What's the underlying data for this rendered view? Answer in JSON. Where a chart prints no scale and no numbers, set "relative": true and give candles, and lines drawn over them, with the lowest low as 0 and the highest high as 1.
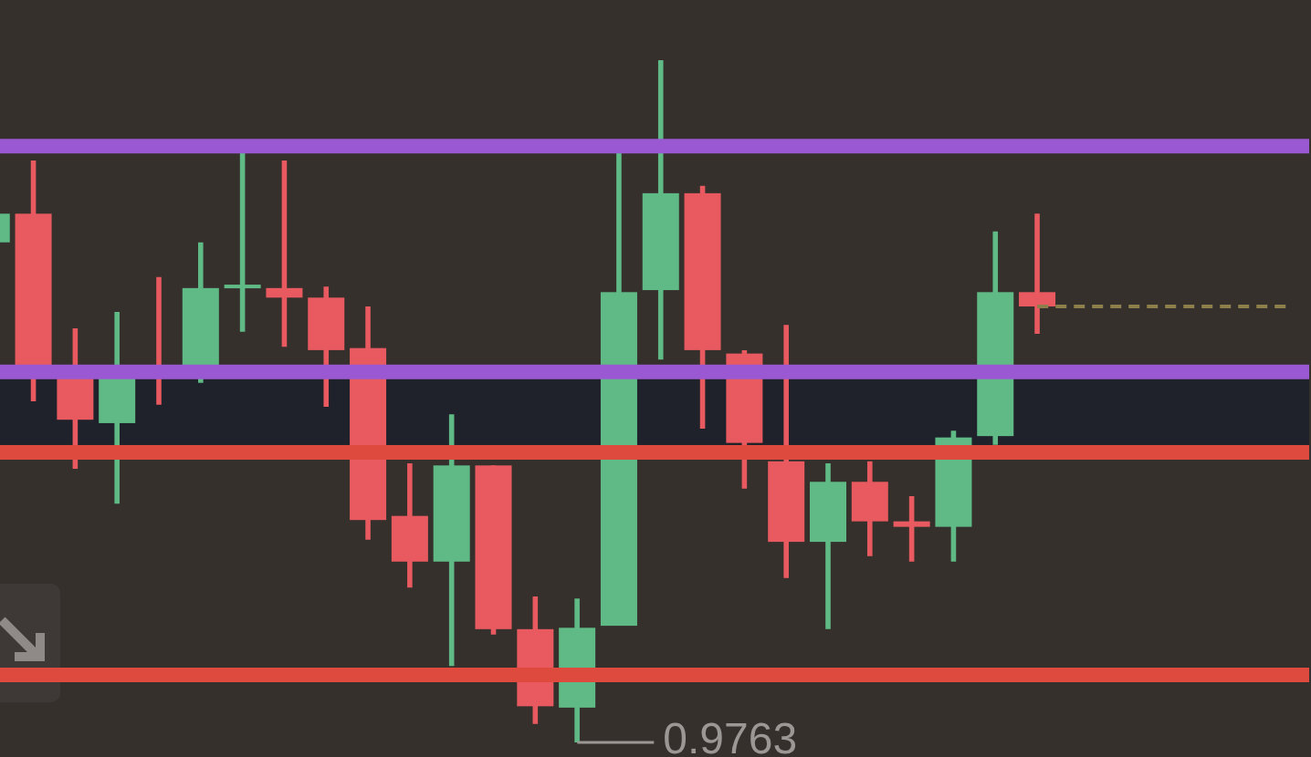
{
  "chart_data": {
    "type": "candlestick",
    "relative": true,
    "tick_labels": false,
    "categories": [
      null,
      null,
      null,
      null,
      null,
      null,
      null,
      null,
      null,
      null,
      null,
      null,
      null,
      null,
      null,
      null,
      null,
      null,
      null,
      null,
      null,
      null,
      null,
      null,
      null,
      null,
      null,
      null,
      null,
      null,
      null,
      null
    ],
    "ohlc": [
      [
        0.733,
        0.775,
        0.733,
        0.775
      ],
      [
        0.775,
        0.853,
        0.5,
        0.551
      ],
      [
        0.535,
        0.607,
        0.401,
        0.473
      ],
      [
        0.468,
        0.631,
        0.35,
        0.535
      ],
      [
        0.545,
        0.682,
        0.495,
        0.535
      ],
      [
        0.54,
        0.733,
        0.527,
        0.666
      ],
      [
        0.666,
        0.864,
        0.602,
        0.671
      ],
      [
        0.666,
        0.853,
        0.58,
        0.652
      ],
      [
        0.652,
        0.668,
        0.492,
        0.575
      ],
      [
        0.578,
        0.639,
        0.297,
        0.326
      ],
      [
        0.332,
        0.409,
        0.227,
        0.265
      ],
      [
        0.265,
        0.481,
        0.112,
        0.406
      ],
      [
        0.406,
        0.406,
        0.158,
        0.166
      ],
      [
        0.166,
        0.214,
        0.027,
        0.053
      ],
      [
        0.051,
        0.211,
        0,
        0.168
      ],
      [
        0.171,
        0.869,
        0.171,
        0.66
      ],
      [
        0.663,
        1,
        0.561,
        0.805
      ],
      [
        0.805,
        0.816,
        0.46,
        0.575
      ],
      [
        0.57,
        0.575,
        0.372,
        0.439
      ],
      [
        0.412,
        0.612,
        0.241,
        0.294
      ],
      [
        0.294,
        0.409,
        0.166,
        0.382
      ],
      [
        0.382,
        0.412,
        0.273,
        0.324
      ],
      [
        0.324,
        0.361,
        0.265,
        0.316
      ],
      [
        0.316,
        0.457,
        0.265,
        0.447
      ],
      [
        0.449,
        0.749,
        0.436,
        0.66
      ],
      [
        0.66,
        0.775,
        0.599,
        0.639
      ],
      null,
      null,
      null,
      null,
      null,
      null
    ],
    "colors": [
      "#5fba86",
      "#e85a60",
      "#e85a60",
      "#5fba86",
      "#e85a60",
      "#5fba86",
      "#5fba86",
      "#e85a60",
      "#e85a60",
      "#e85a60",
      "#e85a60",
      "#5fba86",
      "#e85a60",
      "#e85a60",
      "#5fba86",
      "#5fba86",
      "#5fba86",
      "#e85a60",
      "#e85a60",
      "#e85a60",
      "#5fba86",
      "#e85a60",
      "#e85a60",
      "#5fba86",
      "#5fba86",
      "#e85a60",
      null,
      null,
      null,
      null,
      null,
      null
    ],
    "series": [
      {
        "type": "line",
        "color": "#8c7f4b",
        "line_style": "dashed",
        "values": [
          null,
          null,
          null,
          null,
          null,
          null,
          null,
          null,
          null,
          null,
          null,
          null,
          null,
          null,
          null,
          null,
          null,
          null,
          null,
          null,
          null,
          null,
          null,
          null,
          null,
          0.639,
          0.639,
          0.639,
          0.639,
          0.639,
          0.639,
          0.639
        ]
      }
    ],
    "ref_lines": [
      {
        "axis": "y",
        "value": 0.874,
        "color": "#9a58d2"
      },
      {
        "axis": "y",
        "value": 0.543,
        "color": "#9a58d2"
      },
      {
        "axis": "y",
        "value": 0.425,
        "color": "#de4a3e"
      },
      {
        "axis": "y",
        "value": 0.099,
        "color": "#de4a3e"
      }
    ],
    "bands": [
      {
        "axis": "y",
        "from": 0.436,
        "to": 0.532,
        "color": "#1f222b"
      }
    ],
    "annotations": [
      "0.9763"
    ]
  }
}
